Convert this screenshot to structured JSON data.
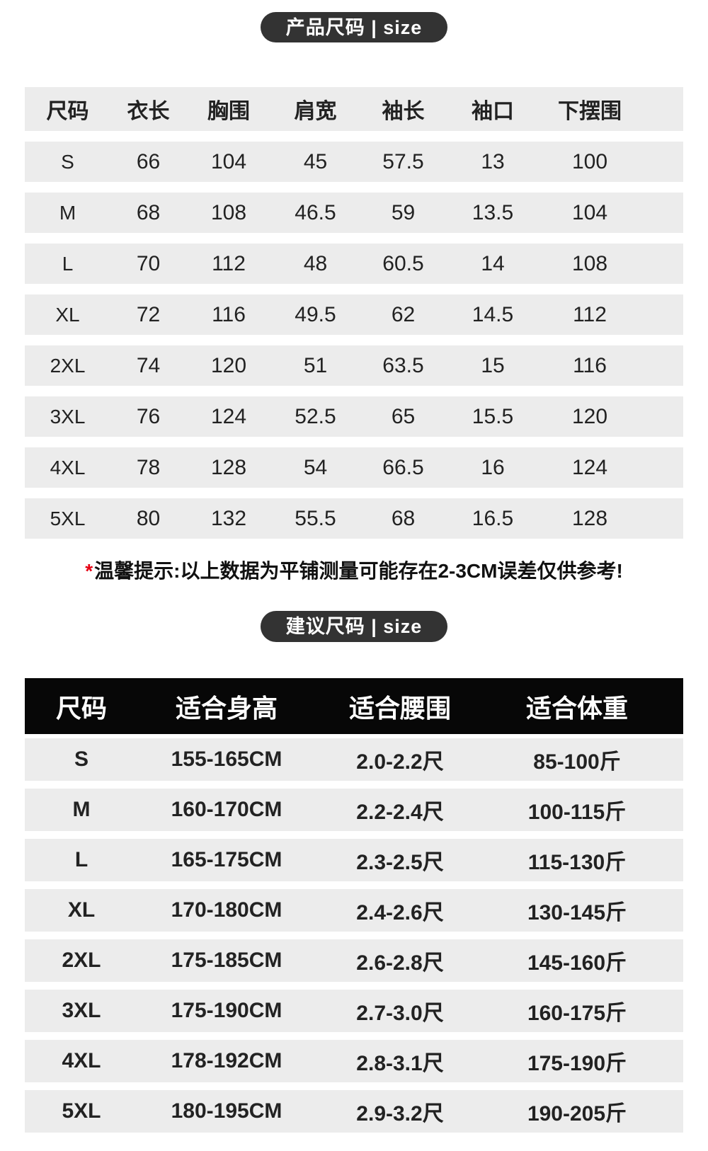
{
  "badges": {
    "product_size": "产品尺码 | size",
    "suggest_size": "建议尺码 | size"
  },
  "product_size_table": {
    "headers": [
      "尺码",
      "衣长",
      "胸围",
      "肩宽",
      "袖长",
      "袖口",
      "下摆围"
    ],
    "rows": [
      [
        "S",
        "66",
        "104",
        "45",
        "57.5",
        "13",
        "100"
      ],
      [
        "M",
        "68",
        "108",
        "46.5",
        "59",
        "13.5",
        "104"
      ],
      [
        "L",
        "70",
        "112",
        "48",
        "60.5",
        "14",
        "108"
      ],
      [
        "XL",
        "72",
        "116",
        "49.5",
        "62",
        "14.5",
        "112"
      ],
      [
        "2XL",
        "74",
        "120",
        "51",
        "63.5",
        "15",
        "116"
      ],
      [
        "3XL",
        "76",
        "124",
        "52.5",
        "65",
        "15.5",
        "120"
      ],
      [
        "4XL",
        "78",
        "128",
        "54",
        "66.5",
        "16",
        "124"
      ],
      [
        "5XL",
        "80",
        "132",
        "55.5",
        "68",
        "16.5",
        "128"
      ]
    ]
  },
  "note": {
    "asterisk": "*",
    "label": "温馨提示:",
    "text": "以上数据为平铺测量可能存在2-3CM误差仅供参考!"
  },
  "suggest_table": {
    "headers": [
      "尺码",
      "适合身高",
      "适合腰围",
      "适合体重"
    ],
    "rows": [
      [
        "S",
        "155-165CM",
        "2.0-2.2尺",
        "85-100斤"
      ],
      [
        "M",
        "160-170CM",
        "2.2-2.4尺",
        "100-115斤"
      ],
      [
        "L",
        "165-175CM",
        "2.3-2.5尺",
        "115-130斤"
      ],
      [
        "XL",
        "170-180CM",
        "2.4-2.6尺",
        "130-145斤"
      ],
      [
        "2XL",
        "175-185CM",
        "2.6-2.8尺",
        "145-160斤"
      ],
      [
        "3XL",
        "175-190CM",
        "2.7-3.0尺",
        "160-175斤"
      ],
      [
        "4XL",
        "178-192CM",
        "2.8-3.1尺",
        "175-190斤"
      ],
      [
        "5XL",
        "180-195CM",
        "2.9-3.2尺",
        "190-205斤"
      ]
    ]
  },
  "colors": {
    "badge_bg": "#333333",
    "row_bg": "#ececec",
    "table2_header_bg": "#070707",
    "text": "#222222",
    "accent_red": "#e60012"
  }
}
